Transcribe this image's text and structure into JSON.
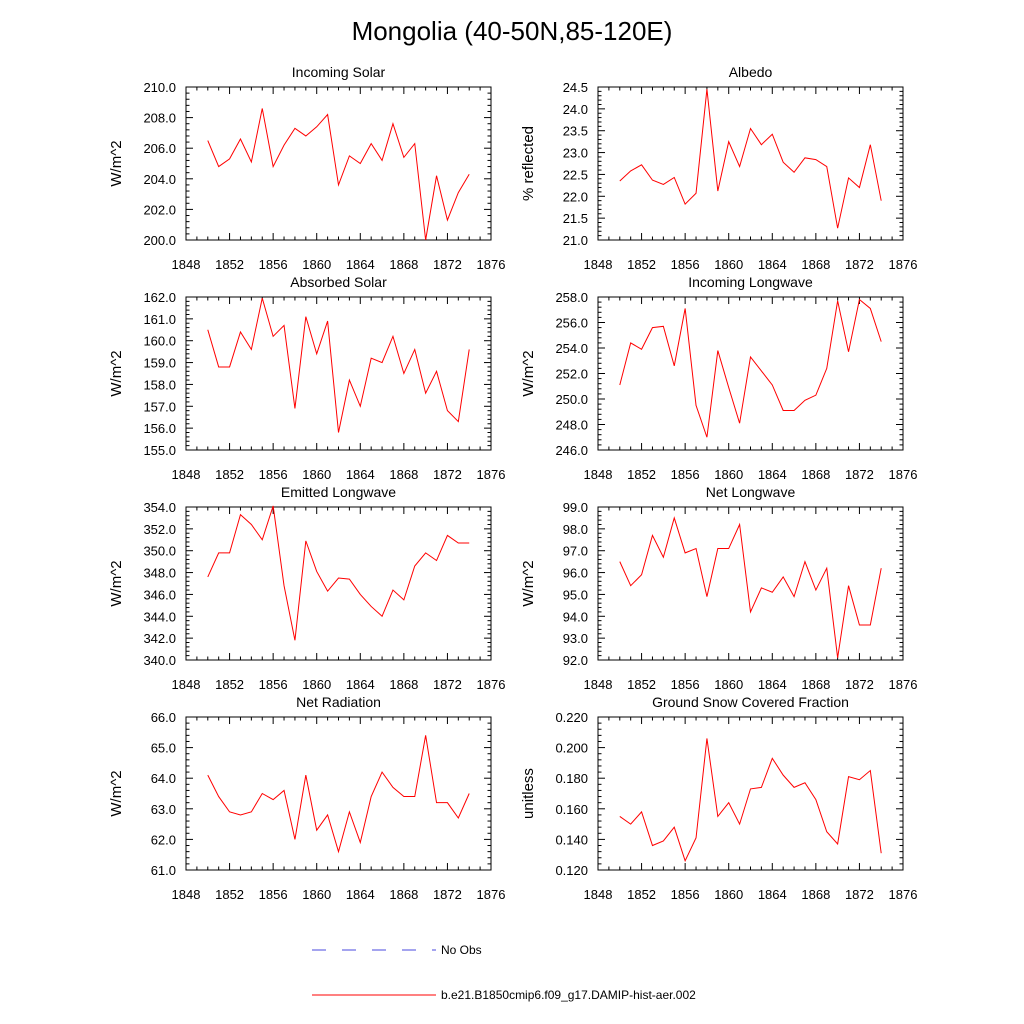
{
  "figure": {
    "title": "Mongolia (40-50N,85-120E)",
    "legend": [
      {
        "label": "No Obs",
        "style": "dashed",
        "color": "#4a4adf"
      },
      {
        "label": "b.e21.B1850cmip6.f09_g17.DAMIP-hist-aer.002",
        "style": "solid",
        "color": "#ff0000"
      }
    ]
  },
  "chart_data": [
    {
      "type": "line",
      "title": "Incoming Solar",
      "ylabel": "W/m^2",
      "xlim": [
        1848,
        1876
      ],
      "ylim": [
        200,
        210
      ],
      "xticks": [
        1848,
        1852,
        1856,
        1860,
        1864,
        1868,
        1872,
        1876
      ],
      "yticks": [
        "200.0",
        "202.0",
        "204.0",
        "206.0",
        "208.0",
        "210.0"
      ],
      "series": [
        {
          "color": "#ff0000",
          "x": [
            1850,
            1851,
            1852,
            1853,
            1854,
            1855,
            1856,
            1857,
            1858,
            1859,
            1860,
            1861,
            1862,
            1863,
            1864,
            1865,
            1866,
            1867,
            1868,
            1869,
            1870,
            1871,
            1872,
            1873,
            1874
          ],
          "y": [
            206.5,
            204.8,
            205.3,
            206.6,
            205.1,
            208.6,
            204.8,
            206.2,
            207.3,
            206.8,
            207.4,
            208.2,
            203.6,
            205.5,
            205.0,
            206.3,
            205.2,
            207.6,
            205.4,
            206.3,
            200.0,
            204.2,
            201.3,
            203.1,
            204.3
          ]
        }
      ]
    },
    {
      "type": "line",
      "title": "Albedo",
      "ylabel": "% reflected",
      "xlim": [
        1848,
        1876
      ],
      "ylim": [
        21,
        24.5
      ],
      "xticks": [
        1848,
        1852,
        1856,
        1860,
        1864,
        1868,
        1872,
        1876
      ],
      "yticks": [
        "21.0",
        "21.5",
        "22.0",
        "22.5",
        "23.0",
        "23.5",
        "24.0",
        "24.5"
      ],
      "series": [
        {
          "color": "#ff0000",
          "x": [
            1850,
            1851,
            1852,
            1853,
            1854,
            1855,
            1856,
            1857,
            1858,
            1859,
            1860,
            1861,
            1862,
            1863,
            1864,
            1865,
            1866,
            1867,
            1868,
            1869,
            1870,
            1871,
            1872,
            1873,
            1874
          ],
          "y": [
            22.35,
            22.58,
            22.72,
            22.37,
            22.27,
            22.43,
            21.82,
            22.07,
            24.45,
            22.12,
            23.25,
            22.68,
            23.55,
            23.18,
            23.42,
            22.78,
            22.55,
            22.88,
            22.84,
            22.68,
            21.27,
            22.42,
            22.2,
            23.18,
            21.9
          ]
        }
      ]
    },
    {
      "type": "line",
      "title": "Absorbed Solar",
      "ylabel": "W/m^2",
      "xlim": [
        1848,
        1876
      ],
      "ylim": [
        155,
        162
      ],
      "xticks": [
        1848,
        1852,
        1856,
        1860,
        1864,
        1868,
        1872,
        1876
      ],
      "yticks": [
        "155.0",
        "156.0",
        "157.0",
        "158.0",
        "159.0",
        "160.0",
        "161.0",
        "162.0"
      ],
      "series": [
        {
          "color": "#ff0000",
          "x": [
            1850,
            1851,
            1852,
            1853,
            1854,
            1855,
            1856,
            1857,
            1858,
            1859,
            1860,
            1861,
            1862,
            1863,
            1864,
            1865,
            1866,
            1867,
            1868,
            1869,
            1870,
            1871,
            1872,
            1873,
            1874
          ],
          "y": [
            160.5,
            158.8,
            158.8,
            160.4,
            159.6,
            161.95,
            160.2,
            160.7,
            156.9,
            161.1,
            159.4,
            160.9,
            155.8,
            158.2,
            157.0,
            159.2,
            159.0,
            160.2,
            158.5,
            159.6,
            157.6,
            158.6,
            156.8,
            156.3,
            159.6
          ]
        }
      ]
    },
    {
      "type": "line",
      "title": "Incoming Longwave",
      "ylabel": "W/m^2",
      "xlim": [
        1848,
        1876
      ],
      "ylim": [
        246,
        258
      ],
      "xticks": [
        1848,
        1852,
        1856,
        1860,
        1864,
        1868,
        1872,
        1876
      ],
      "yticks": [
        "246.0",
        "248.0",
        "250.0",
        "252.0",
        "254.0",
        "256.0",
        "258.0"
      ],
      "series": [
        {
          "color": "#ff0000",
          "x": [
            1850,
            1851,
            1852,
            1853,
            1854,
            1855,
            1856,
            1857,
            1858,
            1859,
            1860,
            1861,
            1862,
            1863,
            1864,
            1865,
            1866,
            1867,
            1868,
            1869,
            1870,
            1871,
            1872,
            1873,
            1874
          ],
          "y": [
            251.1,
            254.4,
            253.9,
            255.6,
            255.7,
            252.6,
            257.1,
            249.5,
            247.0,
            253.8,
            250.9,
            248.1,
            253.3,
            252.2,
            251.1,
            249.1,
            249.1,
            249.9,
            250.3,
            252.4,
            257.7,
            253.7,
            257.8,
            257.1,
            254.5
          ]
        }
      ]
    },
    {
      "type": "line",
      "title": "Emitted Longwave",
      "ylabel": "W/m^2",
      "xlim": [
        1848,
        1876
      ],
      "ylim": [
        340,
        354
      ],
      "xticks": [
        1848,
        1852,
        1856,
        1860,
        1864,
        1868,
        1872,
        1876
      ],
      "yticks": [
        "340.0",
        "342.0",
        "344.0",
        "346.0",
        "348.0",
        "350.0",
        "352.0",
        "354.0"
      ],
      "series": [
        {
          "color": "#ff0000",
          "x": [
            1850,
            1851,
            1852,
            1853,
            1854,
            1855,
            1856,
            1857,
            1858,
            1859,
            1860,
            1861,
            1862,
            1863,
            1864,
            1865,
            1866,
            1867,
            1868,
            1869,
            1870,
            1871,
            1872,
            1873,
            1874
          ],
          "y": [
            347.6,
            349.8,
            349.8,
            353.3,
            352.4,
            351.0,
            354.1,
            346.8,
            341.8,
            350.9,
            348.1,
            346.3,
            347.5,
            347.4,
            346.0,
            344.9,
            344.0,
            346.4,
            345.5,
            348.6,
            349.8,
            349.1,
            351.4,
            350.7,
            350.7
          ]
        }
      ]
    },
    {
      "type": "line",
      "title": "Net Longwave",
      "ylabel": "W/m^2",
      "xlim": [
        1848,
        1876
      ],
      "ylim": [
        92,
        99
      ],
      "xticks": [
        1848,
        1852,
        1856,
        1860,
        1864,
        1868,
        1872,
        1876
      ],
      "yticks": [
        "92.0",
        "93.0",
        "94.0",
        "95.0",
        "96.0",
        "97.0",
        "98.0",
        "99.0"
      ],
      "series": [
        {
          "color": "#ff0000",
          "x": [
            1850,
            1851,
            1852,
            1853,
            1854,
            1855,
            1856,
            1857,
            1858,
            1859,
            1860,
            1861,
            1862,
            1863,
            1864,
            1865,
            1866,
            1867,
            1868,
            1869,
            1870,
            1871,
            1872,
            1873,
            1874
          ],
          "y": [
            96.5,
            95.4,
            95.9,
            97.7,
            96.7,
            98.5,
            96.9,
            97.1,
            94.9,
            97.1,
            97.1,
            98.2,
            94.2,
            95.3,
            95.1,
            95.8,
            94.9,
            96.5,
            95.2,
            96.2,
            92.1,
            95.4,
            93.6,
            93.6,
            96.2
          ]
        }
      ]
    },
    {
      "type": "line",
      "title": "Net Radiation",
      "ylabel": "W/m^2",
      "xlim": [
        1848,
        1876
      ],
      "ylim": [
        61,
        66
      ],
      "xticks": [
        1848,
        1852,
        1856,
        1860,
        1864,
        1868,
        1872,
        1876
      ],
      "yticks": [
        "61.0",
        "62.0",
        "63.0",
        "64.0",
        "65.0",
        "66.0"
      ],
      "series": [
        {
          "color": "#ff0000",
          "x": [
            1850,
            1851,
            1852,
            1853,
            1854,
            1855,
            1856,
            1857,
            1858,
            1859,
            1860,
            1861,
            1862,
            1863,
            1864,
            1865,
            1866,
            1867,
            1868,
            1869,
            1870,
            1871,
            1872,
            1873,
            1874
          ],
          "y": [
            64.1,
            63.4,
            62.9,
            62.8,
            62.9,
            63.5,
            63.3,
            63.6,
            62.0,
            64.1,
            62.3,
            62.8,
            61.6,
            62.9,
            61.9,
            63.4,
            64.2,
            63.7,
            63.4,
            63.4,
            65.4,
            63.2,
            63.2,
            62.7,
            63.5
          ]
        }
      ]
    },
    {
      "type": "line",
      "title": "Ground Snow Covered Fraction",
      "ylabel": "unitless",
      "xlim": [
        1848,
        1876
      ],
      "ylim": [
        0.12,
        0.22
      ],
      "xticks": [
        1848,
        1852,
        1856,
        1860,
        1864,
        1868,
        1872,
        1876
      ],
      "yticks": [
        "0.120",
        "0.140",
        "0.160",
        "0.180",
        "0.200",
        "0.220"
      ],
      "series": [
        {
          "color": "#ff0000",
          "x": [
            1850,
            1851,
            1852,
            1853,
            1854,
            1855,
            1856,
            1857,
            1858,
            1859,
            1860,
            1861,
            1862,
            1863,
            1864,
            1865,
            1866,
            1867,
            1868,
            1869,
            1870,
            1871,
            1872,
            1873,
            1874
          ],
          "y": [
            0.155,
            0.15,
            0.158,
            0.136,
            0.139,
            0.148,
            0.126,
            0.141,
            0.206,
            0.155,
            0.164,
            0.15,
            0.173,
            0.174,
            0.193,
            0.182,
            0.174,
            0.177,
            0.166,
            0.145,
            0.137,
            0.181,
            0.179,
            0.185,
            0.131
          ]
        }
      ]
    }
  ]
}
